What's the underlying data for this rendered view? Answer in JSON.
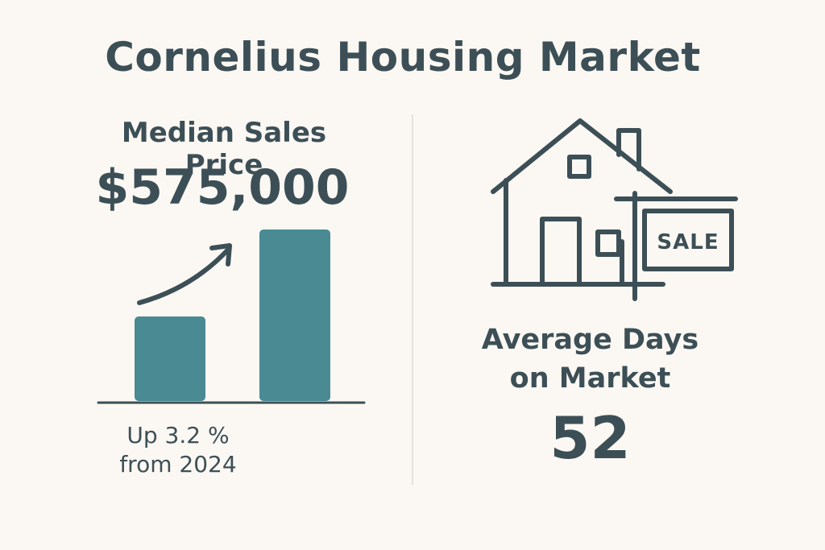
{
  "title": "Cornelius Housing Market",
  "median": {
    "label": "Median Sales Price",
    "value": "$575,000",
    "change_line1": "Up 3.2 %",
    "change_line2": "from 2024"
  },
  "chart_data": {
    "type": "bar",
    "categories": [
      "",
      ""
    ],
    "values": [
      0.35,
      0.71
    ],
    "trend": "up",
    "bar_color": "#4a8a92"
  },
  "house": {
    "icon": "house-for-sale-icon",
    "sign_text": "SALE"
  },
  "days": {
    "label_line1": "Average Days",
    "label_line2": "on Market",
    "value": "52"
  },
  "colors": {
    "background": "#fbf8f3",
    "text": "#3d4f56",
    "accent": "#4a8a92"
  }
}
